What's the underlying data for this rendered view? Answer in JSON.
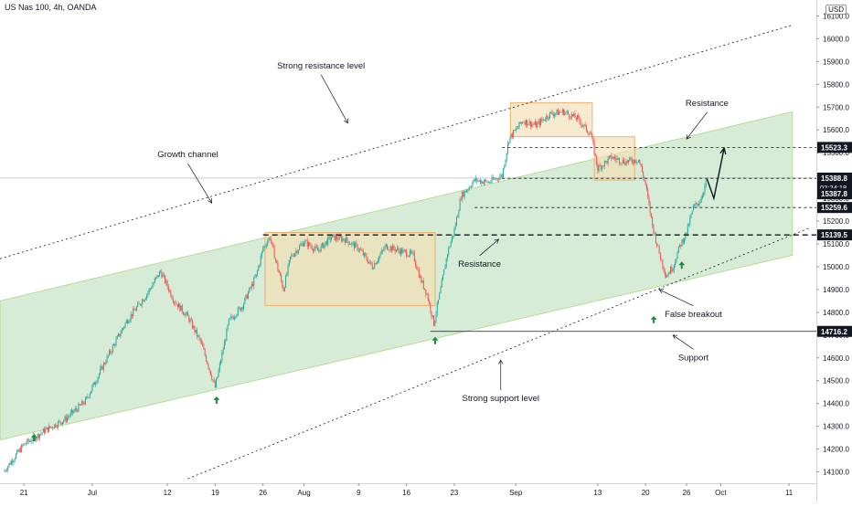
{
  "header": {
    "symbol": "US Nas 100, 4h, OANDA",
    "currency": "USD"
  },
  "colors": {
    "up": "#26a69a",
    "down": "#ef5350",
    "channel_fill": "#c8e6c9",
    "box_fill": "#f5deb3",
    "box_stroke": "#f0a05a",
    "arrow": "#1b8a3a",
    "price_tag_bg": "#131722"
  },
  "chart_data": {
    "type": "candlestick",
    "title": "",
    "xlabel": "",
    "ylabel": "",
    "ylim": [
      14050,
      16170
    ],
    "y_ticks": [
      14100,
      14200,
      14300,
      14400,
      14500,
      14600,
      14700,
      14800,
      14900,
      15000,
      15100,
      15200,
      15300,
      15400,
      15500,
      15600,
      15700,
      15800,
      15900,
      16000,
      16100
    ],
    "y_tick_labels": [
      "14100.0",
      "14200.0",
      "14300.0",
      "14400.0",
      "14500.0",
      "14600.0",
      "14700.0",
      "14800.0",
      "14900.0",
      "15000.0",
      "15100.0",
      "15200.0",
      "15300.0",
      "15400.0",
      "15500.0",
      "15600.0",
      "15700.0",
      "15800.0",
      "15900.0",
      "16000.0",
      "16100.0"
    ],
    "x_ticks": [
      "21",
      "Jul",
      "12",
      "19",
      "26",
      "Aug",
      "9",
      "16",
      "23",
      "Sep",
      "13",
      "20",
      "26",
      "Oct",
      "11"
    ],
    "x_tick_days": [
      -10,
      0,
      11,
      18,
      25,
      31,
      39,
      46,
      53,
      62,
      74,
      81,
      87,
      92,
      102
    ],
    "x_range_days": [
      -13.5,
      106
    ],
    "price_path": [
      [
        -13,
        14100
      ],
      [
        -10,
        14220
      ],
      [
        -7,
        14280
      ],
      [
        -4,
        14330
      ],
      [
        -1,
        14410
      ],
      [
        2,
        14590
      ],
      [
        5,
        14760
      ],
      [
        8,
        14880
      ],
      [
        10,
        14980
      ],
      [
        12,
        14850
      ],
      [
        14,
        14780
      ],
      [
        16,
        14660
      ],
      [
        18,
        14470
      ],
      [
        20,
        14760
      ],
      [
        22,
        14830
      ],
      [
        24,
        14960
      ],
      [
        25,
        15080
      ],
      [
        26,
        15130
      ],
      [
        27,
        15010
      ],
      [
        28,
        14900
      ],
      [
        29,
        15040
      ],
      [
        31,
        15110
      ],
      [
        33,
        15070
      ],
      [
        35,
        15130
      ],
      [
        37,
        15120
      ],
      [
        39,
        15080
      ],
      [
        41,
        15000
      ],
      [
        43,
        15090
      ],
      [
        45,
        15070
      ],
      [
        47,
        15050
      ],
      [
        48,
        14950
      ],
      [
        49,
        14880
      ],
      [
        50,
        14750
      ],
      [
        51,
        14900
      ],
      [
        52,
        15060
      ],
      [
        53,
        15160
      ],
      [
        54,
        15310
      ],
      [
        56,
        15380
      ],
      [
        58,
        15370
      ],
      [
        60,
        15400
      ],
      [
        61,
        15560
      ],
      [
        63,
        15640
      ],
      [
        65,
        15620
      ],
      [
        67,
        15670
      ],
      [
        69,
        15680
      ],
      [
        71,
        15650
      ],
      [
        73,
        15580
      ],
      [
        74,
        15430
      ],
      [
        76,
        15480
      ],
      [
        78,
        15460
      ],
      [
        80,
        15470
      ],
      [
        81,
        15360
      ],
      [
        82,
        15180
      ],
      [
        83,
        15060
      ],
      [
        84,
        14960
      ],
      [
        85,
        15000
      ],
      [
        86,
        15090
      ],
      [
        87,
        15150
      ],
      [
        88,
        15260
      ],
      [
        89,
        15290
      ],
      [
        90,
        15385
      ]
    ],
    "projection": [
      [
        90,
        15385
      ],
      [
        91,
        15300
      ],
      [
        92.5,
        15520
      ]
    ],
    "horizontal_levels": [
      {
        "value": 15523.3,
        "label": "15523.3",
        "style": "dotted",
        "from_day": 60
      },
      {
        "value": 15388.8,
        "label": "15388.8",
        "style": "thin",
        "from_day": -13.5
      },
      {
        "value": 15387.8,
        "label": "15387.8",
        "style": "dotted",
        "from_day": 60
      },
      {
        "value": 15259.6,
        "label": "15259.6",
        "style": "dotted",
        "from_day": 56
      },
      {
        "value": 15139.5,
        "label": "15139.5",
        "style": "dashed",
        "from_day": 25
      },
      {
        "value": 14716.2,
        "label": "14716.2",
        "style": "solid",
        "from_day": 49.5
      }
    ],
    "countdown": "02:24:18",
    "channel": {
      "start": [
        -13.5,
        14240,
        14850
      ],
      "end": [
        102.5,
        15050,
        15680
      ]
    },
    "trendlines": [
      {
        "name": "Strong resistance level",
        "from": [
          -13.5,
          15035
        ],
        "to": [
          102.5,
          16060
        ]
      },
      {
        "name": "Strong support level",
        "from": [
          14,
          14070
        ],
        "to": [
          105,
          15170
        ]
      }
    ],
    "boxes": [
      {
        "x0": 25.3,
        "x1": 50.2,
        "y0": 14830,
        "y1": 15150
      },
      {
        "x0": 61.2,
        "x1": 73.2,
        "y0": 15570,
        "y1": 15720
      },
      {
        "x0": 73.5,
        "x1": 79.4,
        "y0": 15380,
        "y1": 15570
      }
    ],
    "signal_arrows": [
      [
        -8.5,
        14250
      ],
      [
        18.2,
        14415
      ],
      [
        50.2,
        14676
      ],
      [
        82.2,
        14768
      ],
      [
        86.3,
        15007
      ]
    ],
    "annotations": [
      {
        "text": "Strong resistance level",
        "at": [
          33.5,
          15870
        ],
        "pointer_to": [
          37.4,
          15630
        ]
      },
      {
        "text": "Growth channel",
        "at": [
          14,
          15480
        ],
        "pointer_to": [
          17.5,
          15280
        ]
      },
      {
        "text": "Resistance",
        "at": [
          56.7,
          15000
        ],
        "pointer_to": [
          59.5,
          15120
        ]
      },
      {
        "text": "Resistance",
        "at": [
          90,
          15705
        ],
        "pointer_to": [
          87,
          15560
        ]
      },
      {
        "text": "False breakout",
        "at": [
          88,
          14780
        ],
        "pointer_to": [
          83,
          14900
        ]
      },
      {
        "text": "Support",
        "at": [
          88,
          14590
        ],
        "pointer_to": [
          85,
          14700
        ]
      },
      {
        "text": "Strong support level",
        "at": [
          59.8,
          14410
        ],
        "pointer_to": [
          59.8,
          14590
        ]
      }
    ]
  }
}
